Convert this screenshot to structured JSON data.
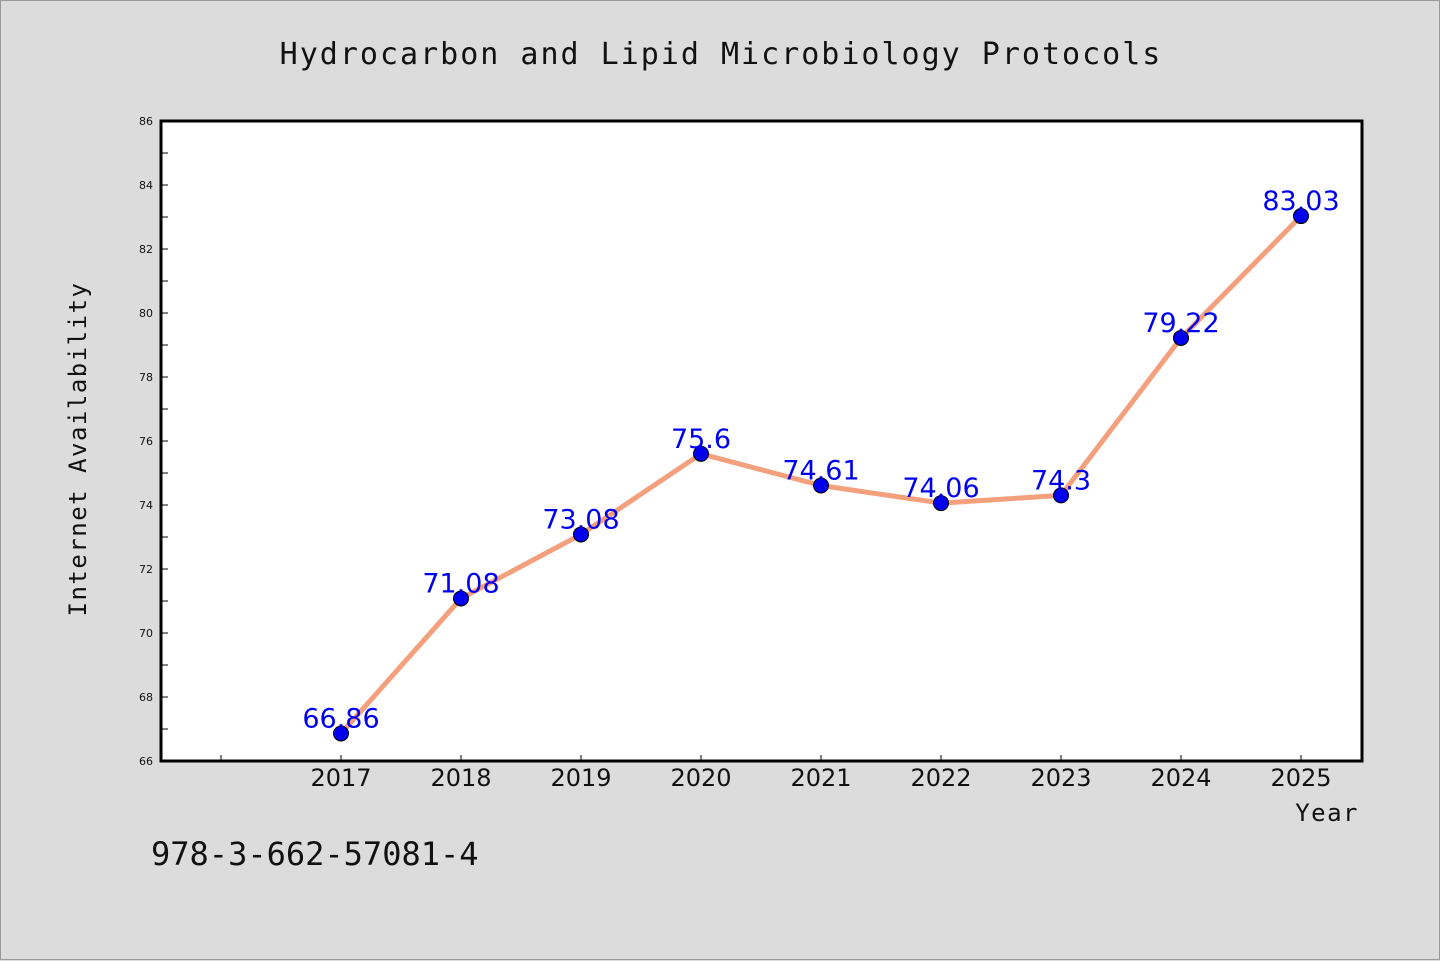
{
  "chart_data": {
    "type": "line",
    "title": "Hydrocarbon and Lipid Microbiology Protocols",
    "xlabel": "Year",
    "ylabel": "Internet Availability",
    "categories": [
      "2017",
      "2018",
      "2019",
      "2020",
      "2021",
      "2022",
      "2023",
      "2024",
      "2025"
    ],
    "series": [
      {
        "values": [
          66.86,
          71.08,
          73.08,
          75.6,
          74.61,
          74.06,
          74.3,
          79.22,
          83.03
        ],
        "data_labels": [
          "66.86",
          "71.08",
          "73.08",
          "75.6",
          "74.61",
          "74.06",
          "74.3",
          "79.22",
          "83.03"
        ],
        "line_color": "#f4a07c",
        "marker_color": "#0000ee"
      }
    ],
    "ylim": [
      66,
      86
    ],
    "yticks": [
      "66",
      "68",
      "70",
      "72",
      "74",
      "76",
      "78",
      "80",
      "82",
      "84",
      "86"
    ],
    "grid": false,
    "legend": "none"
  },
  "footnote": "978-3-662-57081-4"
}
